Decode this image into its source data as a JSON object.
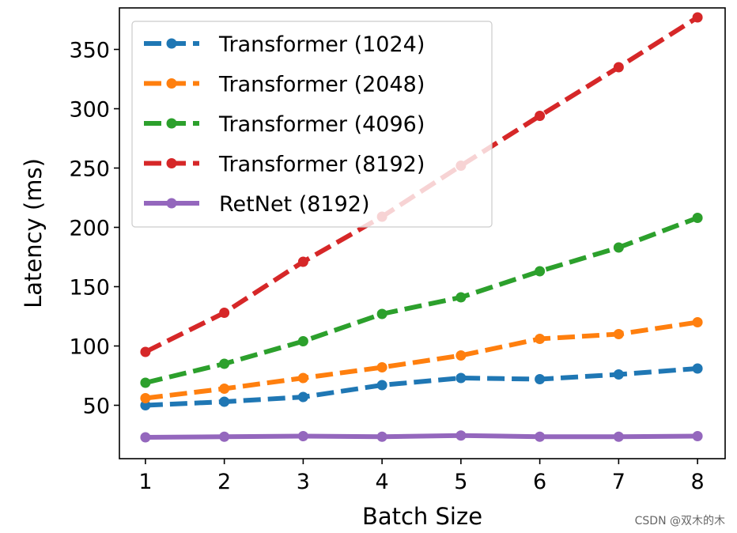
{
  "chart_data": {
    "type": "line",
    "title": "",
    "xlabel": "Batch Size",
    "ylabel": "Latency (ms)",
    "x": [
      1,
      2,
      3,
      4,
      5,
      6,
      7,
      8
    ],
    "xlim": [
      0.67,
      8.35
    ],
    "ylim": [
      5,
      385
    ],
    "xticks": [
      1,
      2,
      3,
      4,
      5,
      6,
      7,
      8
    ],
    "yticks": [
      50,
      100,
      150,
      200,
      250,
      300,
      350
    ],
    "grid": false,
    "legend_position": "top-left",
    "series": [
      {
        "name": "Transformer (1024)",
        "color": "#1f77b4",
        "style": "dashed",
        "values": [
          50,
          53,
          57,
          67,
          73,
          72,
          76,
          81
        ]
      },
      {
        "name": "Transformer (2048)",
        "color": "#ff7f0e",
        "style": "dashed",
        "values": [
          56,
          64,
          73,
          82,
          92,
          106,
          110,
          120
        ]
      },
      {
        "name": "Transformer (4096)",
        "color": "#2ca02c",
        "style": "dashed",
        "values": [
          69,
          85,
          104,
          127,
          141,
          163,
          183,
          208
        ]
      },
      {
        "name": "Transformer (8192)",
        "color": "#d62728",
        "style": "dashed",
        "values": [
          95,
          128,
          171,
          209,
          252,
          294,
          335,
          377
        ]
      },
      {
        "name": "RetNet (8192)",
        "color": "#9467bd",
        "style": "solid",
        "values": [
          23,
          23.5,
          24,
          23.5,
          24.5,
          23.5,
          23.5,
          24
        ]
      }
    ]
  },
  "watermark": "CSDN @双木的木"
}
